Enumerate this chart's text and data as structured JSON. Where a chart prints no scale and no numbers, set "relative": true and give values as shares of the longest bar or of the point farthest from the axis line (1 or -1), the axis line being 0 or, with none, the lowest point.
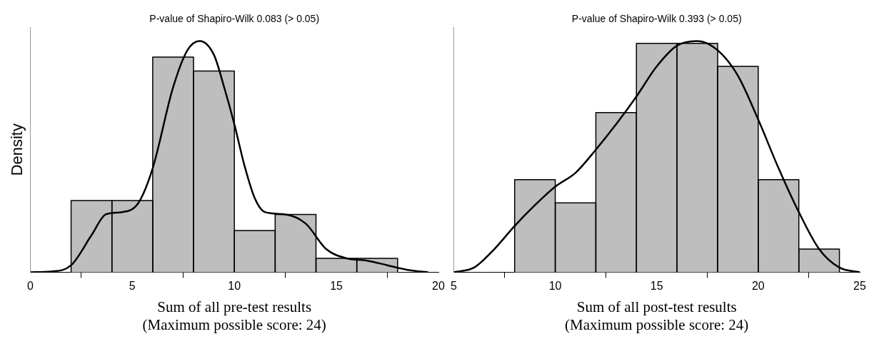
{
  "chart_data": [
    {
      "type": "histogram",
      "relative": true,
      "ylabel": "Density",
      "xlabel": "Sum of all pre-test results\n(Maximum possible score: 24)",
      "annotations": [
        "P-value of Shapiro-Wilk 0.083 (> 0.05)"
      ],
      "xlim": [
        0,
        20
      ],
      "xticks": [
        0,
        5,
        10,
        15,
        20
      ],
      "grid": false,
      "legend": false,
      "series": [
        {
          "color": "#bebebe",
          "bins": [
            2,
            4,
            6,
            8,
            10,
            12,
            14,
            16,
            18
          ],
          "values": [
            0.31,
            0.31,
            0.93,
            0.87,
            0.18,
            0.25,
            0.06,
            0.06
          ]
        },
        {
          "type": "line",
          "color": "#000000",
          "x": [
            0,
            1,
            2,
            3,
            3.7,
            4.5,
            5.3,
            6,
            7,
            7.7,
            8.3,
            9,
            9.5,
            10,
            10.5,
            11,
            11.5,
            12.5,
            13.5,
            14.5,
            15.5,
            16.5,
            17.5,
            18.5,
            19.5
          ],
          "values": [
            0,
            0.003,
            0.03,
            0.16,
            0.25,
            0.26,
            0.3,
            0.45,
            0.8,
            0.96,
            1,
            0.94,
            0.8,
            0.64,
            0.46,
            0.32,
            0.26,
            0.25,
            0.21,
            0.1,
            0.06,
            0.05,
            0.03,
            0.01,
            0
          ]
        }
      ]
    },
    {
      "type": "histogram",
      "relative": true,
      "xlabel": "Sum of all post-test results\n(Maximum possible score: 24)",
      "annotations": [
        "P-value of Shapiro-Wilk 0.393 (> 0.05)"
      ],
      "xlim": [
        5,
        25
      ],
      "xticks": [
        5,
        10,
        15,
        20,
        25
      ],
      "grid": false,
      "legend": false,
      "series": [
        {
          "color": "#bebebe",
          "bins": [
            8,
            10,
            12,
            14,
            16,
            18,
            20,
            22,
            24
          ],
          "values": [
            0.4,
            0.3,
            0.69,
            0.99,
            0.99,
            0.89,
            0.4,
            0.1
          ]
        },
        {
          "type": "line",
          "color": "#000000",
          "x": [
            5,
            6,
            7,
            8,
            9,
            10,
            11,
            12,
            13,
            14,
            15,
            16,
            17,
            18,
            19,
            20,
            21,
            22,
            23,
            24,
            25
          ],
          "values": [
            0,
            0.02,
            0.1,
            0.2,
            0.29,
            0.37,
            0.43,
            0.53,
            0.64,
            0.76,
            0.89,
            0.98,
            1,
            0.96,
            0.85,
            0.66,
            0.45,
            0.26,
            0.1,
            0.02,
            0
          ]
        }
      ]
    }
  ]
}
